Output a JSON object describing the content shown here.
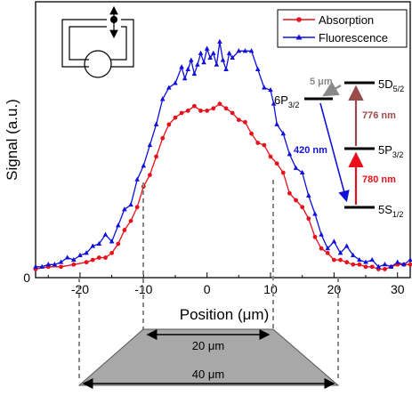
{
  "chart_data": {
    "type": "line",
    "xlabel": "Position (μm)",
    "ylabel": "Signal (a.u.)",
    "xlim": [
      -27,
      32
    ],
    "ylim": [
      0,
      1.0
    ],
    "xticks": [
      -20,
      -10,
      0,
      10,
      20,
      30
    ],
    "yticks": [
      0
    ],
    "legend_position": "top-right",
    "series": [
      {
        "name": "Absorption",
        "color": "#e8101a",
        "marker": "circle",
        "points": [
          [
            -27,
            0.01
          ],
          [
            -25,
            0.02
          ],
          [
            -23,
            0.02
          ],
          [
            -21,
            0.03
          ],
          [
            -19,
            0.04
          ],
          [
            -18,
            0.05
          ],
          [
            -17,
            0.06
          ],
          [
            -16,
            0.06
          ],
          [
            -15,
            0.08
          ],
          [
            -14,
            0.12
          ],
          [
            -13,
            0.18
          ],
          [
            -12,
            0.22
          ],
          [
            -11,
            0.28
          ],
          [
            -10,
            0.37
          ],
          [
            -9,
            0.42
          ],
          [
            -8,
            0.5
          ],
          [
            -7,
            0.58
          ],
          [
            -6,
            0.64
          ],
          [
            -5,
            0.67
          ],
          [
            -4,
            0.69
          ],
          [
            -3,
            0.7
          ],
          [
            -2,
            0.72
          ],
          [
            -1,
            0.7
          ],
          [
            0,
            0.7
          ],
          [
            1,
            0.71
          ],
          [
            2,
            0.73
          ],
          [
            3,
            0.71
          ],
          [
            4,
            0.69
          ],
          [
            5,
            0.66
          ],
          [
            6,
            0.65
          ],
          [
            7,
            0.6
          ],
          [
            8,
            0.56
          ],
          [
            9,
            0.55
          ],
          [
            10,
            0.5
          ],
          [
            11,
            0.47
          ],
          [
            12,
            0.43
          ],
          [
            13,
            0.34
          ],
          [
            14,
            0.31
          ],
          [
            15,
            0.28
          ],
          [
            16,
            0.23
          ],
          [
            17,
            0.15
          ],
          [
            18,
            0.1
          ],
          [
            19,
            0.08
          ],
          [
            20,
            0.05
          ],
          [
            21,
            0.05
          ],
          [
            22,
            0.04
          ],
          [
            23,
            0.03
          ],
          [
            24,
            0.03
          ],
          [
            25,
            0.02
          ],
          [
            26,
            0.02
          ],
          [
            27,
            0.01
          ],
          [
            28,
            0.01
          ],
          [
            29,
            0.02
          ],
          [
            30,
            0.03
          ],
          [
            31,
            0.03
          ],
          [
            32,
            0.03
          ]
        ]
      },
      {
        "name": "Fluorescence",
        "color": "#1010d8",
        "marker": "triangle",
        "points": [
          [
            -27,
            0.02
          ],
          [
            -26,
            0.02
          ],
          [
            -25,
            0.03
          ],
          [
            -24,
            0.03
          ],
          [
            -23,
            0.04
          ],
          [
            -22,
            0.06
          ],
          [
            -21,
            0.05
          ],
          [
            -20,
            0.07
          ],
          [
            -19,
            0.08
          ],
          [
            -18,
            0.11
          ],
          [
            -17,
            0.12
          ],
          [
            -16,
            0.16
          ],
          [
            -15,
            0.13
          ],
          [
            -14,
            0.2
          ],
          [
            -13,
            0.27
          ],
          [
            -12,
            0.29
          ],
          [
            -11,
            0.4
          ],
          [
            -10,
            0.46
          ],
          [
            -9,
            0.55
          ],
          [
            -8,
            0.64
          ],
          [
            -7,
            0.75
          ],
          [
            -6,
            0.8
          ],
          [
            -5,
            0.82
          ],
          [
            -4,
            0.89
          ],
          [
            -3.5,
            0.84
          ],
          [
            -3,
            0.88
          ],
          [
            -2.5,
            0.92
          ],
          [
            -2,
            0.86
          ],
          [
            -1.5,
            0.9
          ],
          [
            -1,
            0.95
          ],
          [
            -0.5,
            0.91
          ],
          [
            0,
            0.97
          ],
          [
            0.5,
            0.93
          ],
          [
            1,
            0.95
          ],
          [
            1.5,
            0.9
          ],
          [
            2,
            1.0
          ],
          [
            2.5,
            0.92
          ],
          [
            3,
            0.88
          ],
          [
            3.5,
            0.95
          ],
          [
            4,
            0.93
          ],
          [
            5,
            0.96
          ],
          [
            6,
            0.96
          ],
          [
            7,
            0.96
          ],
          [
            8,
            0.88
          ],
          [
            9,
            0.8
          ],
          [
            10,
            0.79
          ],
          [
            10.5,
            0.73
          ],
          [
            11,
            0.64
          ],
          [
            12,
            0.6
          ],
          [
            13,
            0.51
          ],
          [
            14,
            0.45
          ],
          [
            15,
            0.43
          ],
          [
            16,
            0.33
          ],
          [
            17,
            0.25
          ],
          [
            18,
            0.16
          ],
          [
            19,
            0.1
          ],
          [
            20,
            0.13
          ],
          [
            21,
            0.08
          ],
          [
            22,
            0.11
          ],
          [
            23,
            0.07
          ],
          [
            24,
            0.05
          ],
          [
            25,
            0.04
          ],
          [
            26,
            0.05
          ],
          [
            27,
            0.02
          ],
          [
            28,
            0.03
          ],
          [
            29,
            0.02
          ],
          [
            30,
            0.04
          ],
          [
            31,
            0.03
          ],
          [
            32,
            0.05
          ]
        ]
      }
    ]
  },
  "energy_levels": {
    "level_5D": "5D5/2",
    "level_6P": "6P3/2",
    "level_5P": "5P3/2",
    "level_5S": "5S1/2",
    "trans_5um": "5 μm",
    "trans_776": "776 nm",
    "trans_420": "420 nm",
    "trans_780": "780 nm"
  },
  "trapezoid": {
    "top_width_label": "20 μm",
    "bottom_width_label": "40 μm"
  },
  "colors": {
    "absorption": "#e8101a",
    "fluorescence": "#1010d8",
    "arrow_776": "#9b4a4a",
    "arrow_780": "#e8101a",
    "arrow_420": "#1010d8",
    "arrow_5um": "#888888",
    "trapezoid_fill": "#a8a8a8"
  }
}
